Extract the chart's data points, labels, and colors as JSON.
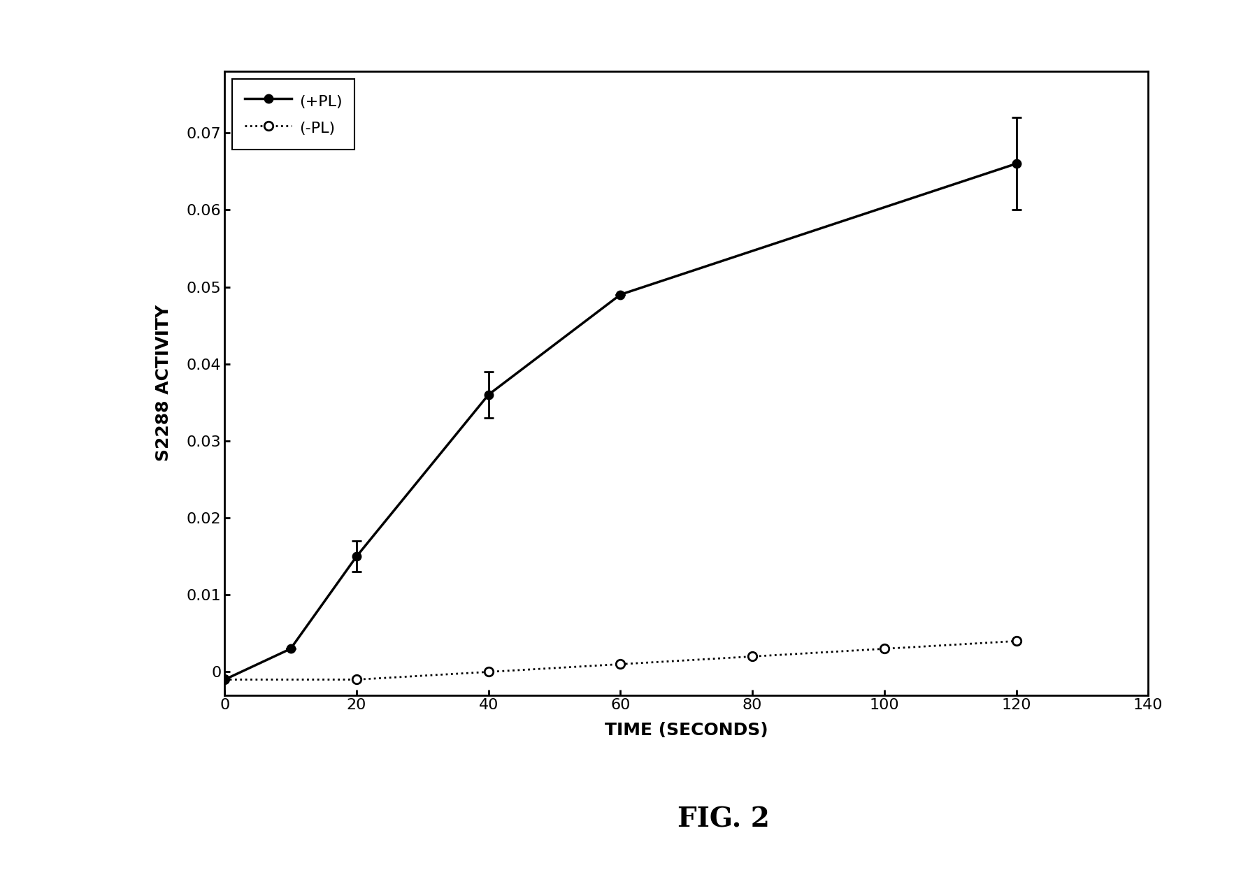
{
  "title": "FIG. 2",
  "ylabel": "S2288 ACTIVITY",
  "xlabel": "TIME (SECONDS)",
  "xlim": [
    0,
    140
  ],
  "ylim": [
    -0.003,
    0.078
  ],
  "xticks": [
    0,
    20,
    40,
    60,
    80,
    100,
    120,
    140
  ],
  "yticks": [
    0,
    0.01,
    0.02,
    0.03,
    0.04,
    0.05,
    0.06,
    0.07
  ],
  "plus_pl_x": [
    0,
    10,
    20,
    40,
    60,
    120
  ],
  "plus_pl_y": [
    -0.001,
    0.003,
    0.015,
    0.036,
    0.049,
    0.066
  ],
  "plus_pl_yerr": [
    0.0,
    0.0,
    0.002,
    0.003,
    0.0,
    0.006
  ],
  "minus_pl_x": [
    0,
    20,
    40,
    60,
    80,
    100,
    120
  ],
  "minus_pl_y": [
    -0.001,
    -0.001,
    0.0,
    0.001,
    0.002,
    0.003,
    0.004
  ],
  "legend_plus": "(+PL)",
  "legend_minus": "(-PL)",
  "bg_color": "#ffffff",
  "line_color": "#000000",
  "title_fontsize": 28,
  "label_fontsize": 18,
  "tick_fontsize": 16,
  "legend_fontsize": 16
}
